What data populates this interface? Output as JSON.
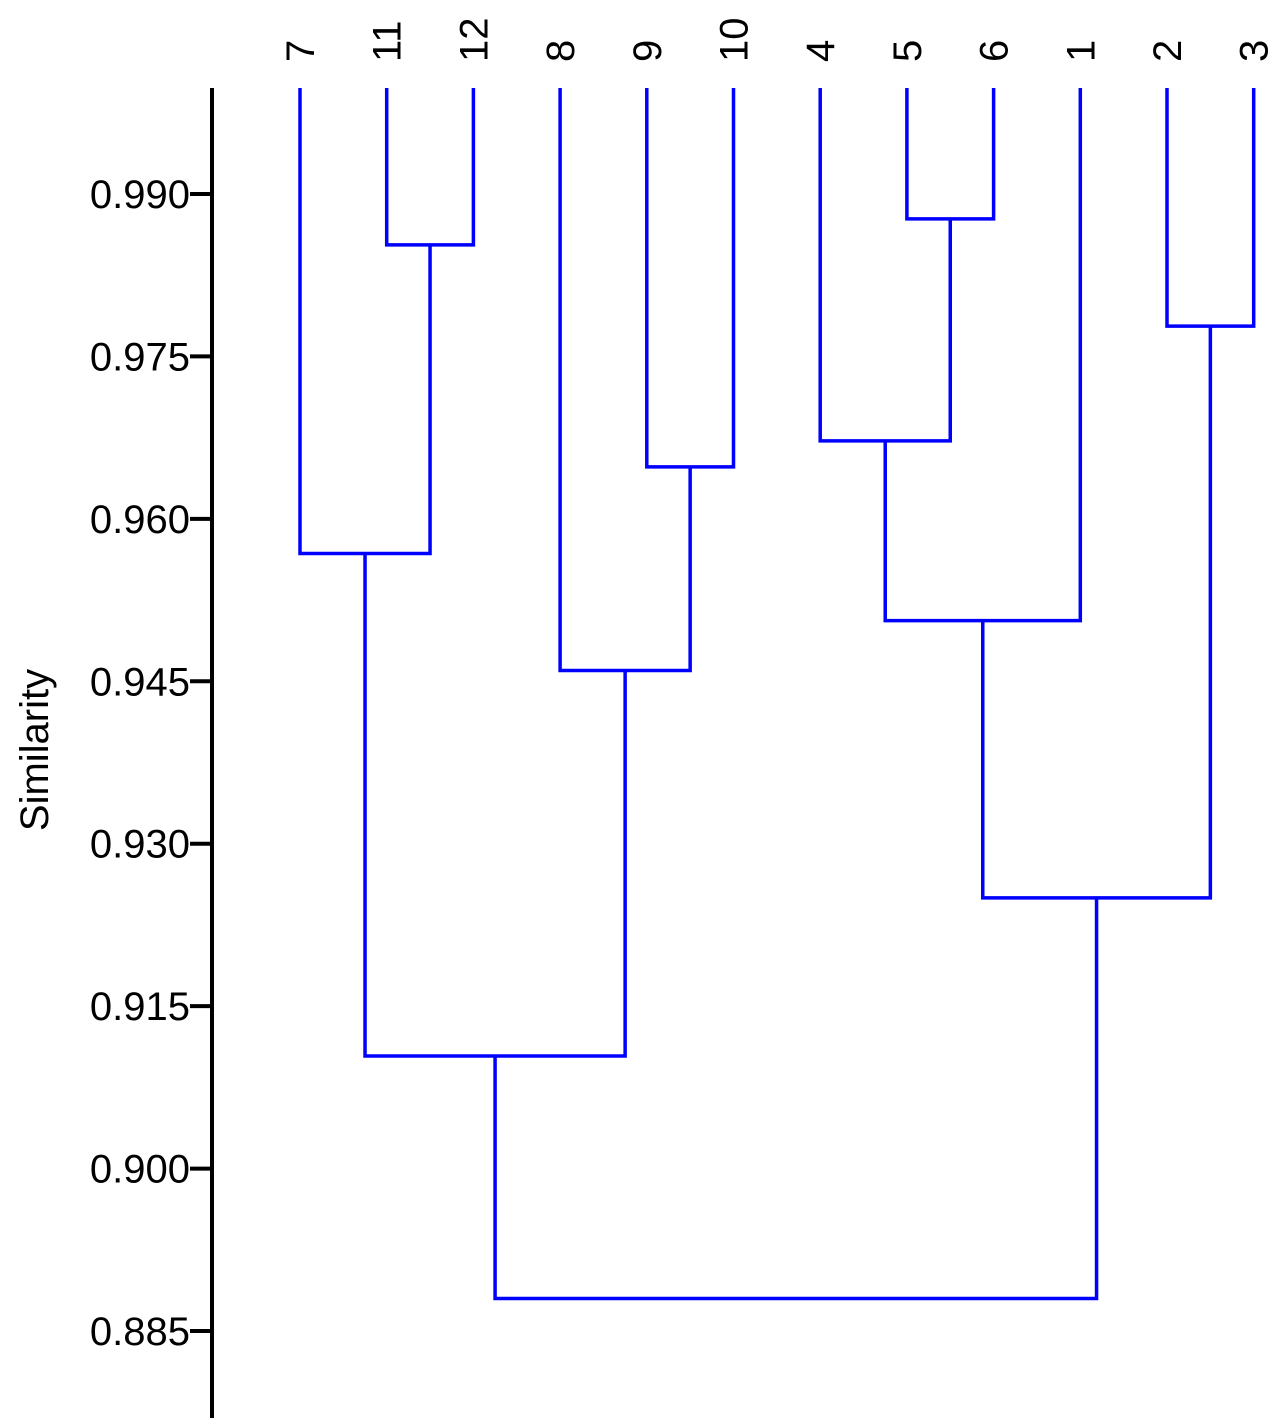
{
  "chart_data": {
    "type": "dendrogram",
    "title": "",
    "ylabel": "Similarity",
    "ylim": [
      0.876,
      0.9997
    ],
    "yticks": [
      "0.885",
      "0.900",
      "0.915",
      "0.930",
      "0.945",
      "0.960",
      "0.975",
      "0.990"
    ],
    "leaf_order": [
      "7",
      "11",
      "12",
      "8",
      "9",
      "10",
      "4",
      "5",
      "6",
      "1",
      "2",
      "3"
    ],
    "merges": [
      {
        "a": "11",
        "b": "12",
        "similarity": 0.9853
      },
      {
        "a": "5",
        "b": "6",
        "similarity": 0.9877
      },
      {
        "a": "2",
        "b": "3",
        "similarity": 0.9778
      },
      {
        "a": "9",
        "b": "10",
        "similarity": 0.9648
      },
      {
        "a": "4",
        "b": "(5,6)",
        "similarity": 0.9672
      },
      {
        "a": "7",
        "b": "(11,12)",
        "similarity": 0.9568
      },
      {
        "a": "(4,(5,6))",
        "b": "1",
        "similarity": 0.9506
      },
      {
        "a": "8",
        "b": "(9,10)",
        "similarity": 0.946
      },
      {
        "a": "((4,(5,6)),1)",
        "b": "(2,3)",
        "similarity": 0.925
      },
      {
        "a": "(7,(11,12))",
        "b": "(8,(9,10))",
        "similarity": 0.9104
      },
      {
        "a": "((7,(11,12)),(8,(9,10)))",
        "b": "(((4,(5,6)),1),(2,3))",
        "similarity": 0.888
      }
    ],
    "line_color": "#0000ff",
    "axis_color": "#000000",
    "grid": false,
    "legend": "none"
  }
}
